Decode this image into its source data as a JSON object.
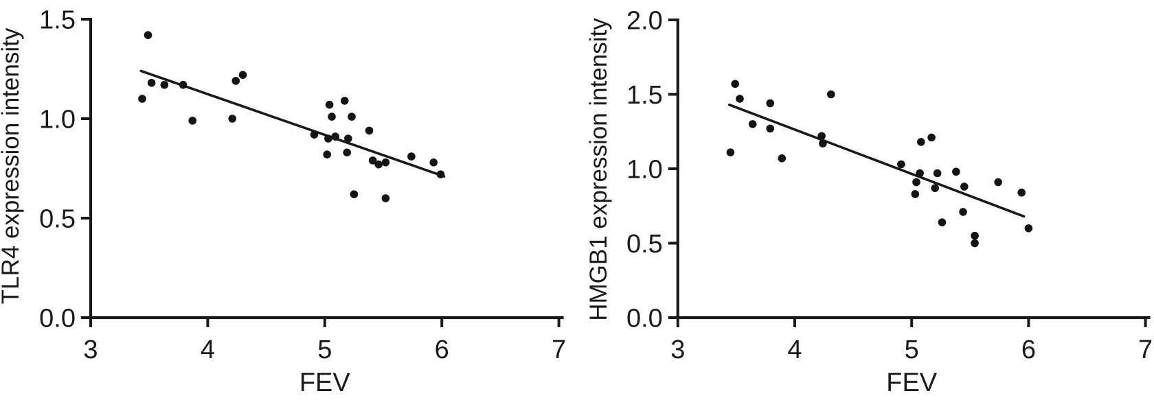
{
  "figure": {
    "background": "#ffffff",
    "ink_color": "#1a1a1a",
    "marker_color": "#141414",
    "description": "Two scatter plots with negative linear regression lines"
  },
  "chart_data": [
    {
      "type": "scatter",
      "title": "",
      "xlabel": "FEV",
      "ylabel": "TLR4 expression intensity",
      "xlim": [
        3,
        7
      ],
      "ylim": [
        0.0,
        1.5
      ],
      "x_ticks": [
        3,
        4,
        5,
        6,
        7
      ],
      "x_tick_labels": [
        "3",
        "4",
        "5",
        "6",
        "7"
      ],
      "y_ticks": [
        0.0,
        0.5,
        1.0,
        1.5
      ],
      "y_tick_labels": [
        "0.0",
        "0.5",
        "1.0",
        "1.5"
      ],
      "grid": false,
      "legend": "none",
      "points": [
        [
          3.49,
          1.42
        ],
        [
          3.44,
          1.1
        ],
        [
          3.52,
          1.18
        ],
        [
          3.63,
          1.17
        ],
        [
          3.79,
          1.17
        ],
        [
          3.87,
          0.99
        ],
        [
          4.21,
          1.0
        ],
        [
          4.24,
          1.19
        ],
        [
          4.3,
          1.22
        ],
        [
          4.91,
          0.92
        ],
        [
          5.04,
          1.07
        ],
        [
          5.17,
          1.09
        ],
        [
          5.06,
          1.01
        ],
        [
          5.23,
          1.01
        ],
        [
          5.03,
          0.9
        ],
        [
          5.09,
          0.91
        ],
        [
          5.2,
          0.9
        ],
        [
          5.38,
          0.94
        ],
        [
          5.02,
          0.82
        ],
        [
          5.19,
          0.83
        ],
        [
          5.41,
          0.79
        ],
        [
          5.46,
          0.77
        ],
        [
          5.52,
          0.78
        ],
        [
          5.74,
          0.81
        ],
        [
          5.93,
          0.78
        ],
        [
          5.99,
          0.72
        ],
        [
          5.25,
          0.62
        ],
        [
          5.52,
          0.6
        ]
      ],
      "trend_line": {
        "x1": 3.43,
        "y1": 1.24,
        "x2": 6.02,
        "y2": 0.71
      }
    },
    {
      "type": "scatter",
      "title": "",
      "xlabel": "FEV",
      "ylabel": "HMGB1 expression intensity",
      "xlim": [
        3,
        7
      ],
      "ylim": [
        0.0,
        2.0
      ],
      "x_ticks": [
        3,
        4,
        5,
        6,
        7
      ],
      "x_tick_labels": [
        "3",
        "4",
        "5",
        "6",
        "7"
      ],
      "y_ticks": [
        0.0,
        0.5,
        1.0,
        1.5,
        2.0
      ],
      "y_tick_labels": [
        "0.0",
        "0.5",
        "1.0",
        "1.5",
        "2.0"
      ],
      "grid": false,
      "legend": "none",
      "points": [
        [
          3.49,
          1.57
        ],
        [
          3.53,
          1.47
        ],
        [
          3.45,
          1.11
        ],
        [
          3.64,
          1.3
        ],
        [
          3.79,
          1.44
        ],
        [
          3.79,
          1.27
        ],
        [
          3.89,
          1.07
        ],
        [
          4.23,
          1.22
        ],
        [
          4.24,
          1.17
        ],
        [
          4.31,
          1.5
        ],
        [
          4.91,
          1.03
        ],
        [
          5.08,
          1.18
        ],
        [
          5.17,
          1.21
        ],
        [
          5.07,
          0.97
        ],
        [
          5.04,
          0.91
        ],
        [
          5.03,
          0.83
        ],
        [
          5.22,
          0.97
        ],
        [
          5.38,
          0.98
        ],
        [
          5.2,
          0.87
        ],
        [
          5.45,
          0.88
        ],
        [
          5.74,
          0.91
        ],
        [
          5.94,
          0.84
        ],
        [
          5.44,
          0.71
        ],
        [
          5.26,
          0.64
        ],
        [
          5.54,
          0.55
        ],
        [
          5.54,
          0.5
        ],
        [
          6.0,
          0.6
        ]
      ],
      "trend_line": {
        "x1": 3.44,
        "y1": 1.43,
        "x2": 5.96,
        "y2": 0.68
      }
    }
  ]
}
